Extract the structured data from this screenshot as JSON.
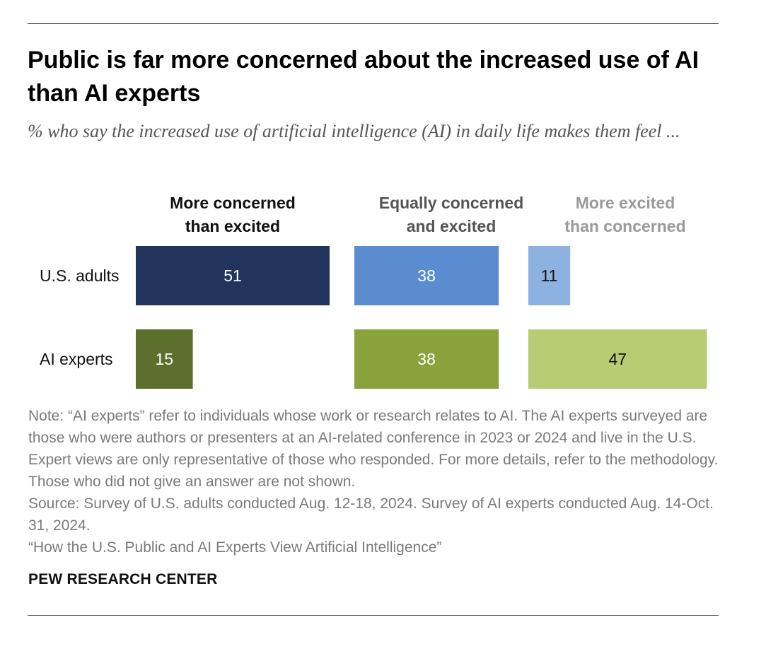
{
  "title": "Public is far more concerned about the increased use of AI than AI experts",
  "subtitle": "% who say the increased use of artificial intelligence (AI) in daily life makes them feel ...",
  "chart_data": {
    "type": "bar",
    "orientation": "horizontal",
    "layout": "grouped-columns",
    "rows": [
      "U.S. adults",
      "AI experts"
    ],
    "categories": [
      {
        "label": [
          "More concerned",
          "than excited"
        ],
        "header_color": "#111111"
      },
      {
        "label": [
          "Equally concerned",
          "and excited"
        ],
        "header_color": "#555555"
      },
      {
        "label": [
          "More excited",
          "than concerned"
        ],
        "header_color": "#9a9a9a"
      }
    ],
    "values": [
      [
        51,
        38,
        11
      ],
      [
        15,
        38,
        47
      ]
    ],
    "colors": [
      [
        "#22335c",
        "#5b8ccf",
        "#8db2e2"
      ],
      [
        "#5c6f2c",
        "#8aa23c",
        "#b8cc73"
      ]
    ],
    "label_colors": [
      [
        "#ffffff",
        "#ffffff",
        "#111111"
      ],
      [
        "#ffffff",
        "#ffffff",
        "#111111"
      ]
    ],
    "xlim": [
      0,
      51
    ]
  },
  "notes": [
    "Note: “AI experts” refer to individuals whose work or research relates to AI. The AI experts surveyed are those who were authors or presenters at an AI-related conference in 2023 or 2024 and live in the U.S. Expert views are only representative of those who responded. For more details, refer to the methodology. Those who did not give an answer are not shown.",
    "Source: Survey of U.S. adults conducted Aug. 12-18, 2024. Survey of AI experts conducted Aug. 14-Oct. 31, 2024.",
    "“How the U.S. Public and AI Experts View Artificial Intelligence”"
  ],
  "brand": "PEW RESEARCH CENTER"
}
